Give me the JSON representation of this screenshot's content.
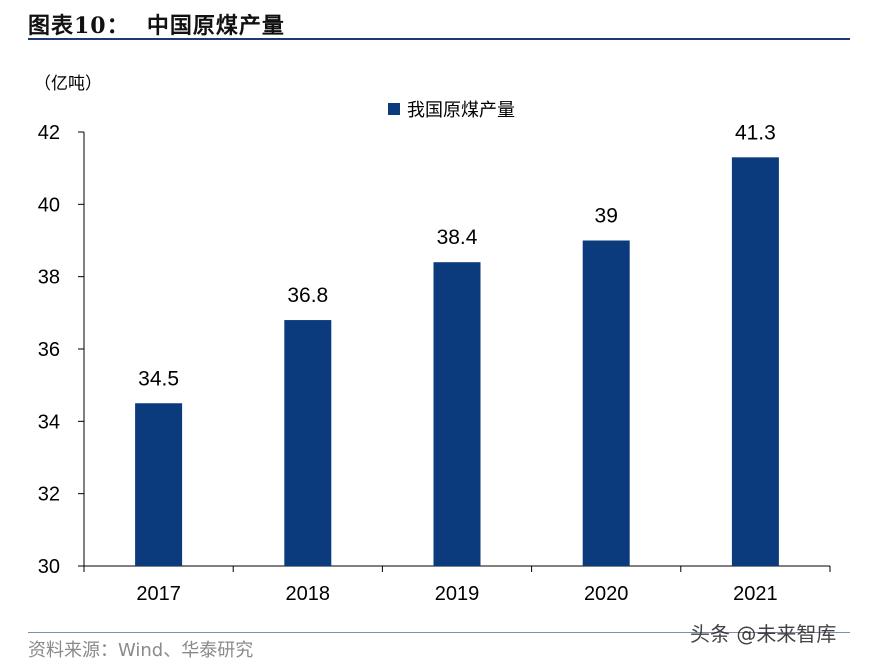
{
  "figure": {
    "title": "图表10：  中国原煤产量",
    "source": "资料来源：Wind、华泰研究",
    "watermark": "头条 @未来智库"
  },
  "chart_data": {
    "type": "bar",
    "unit_label": "（亿吨）",
    "categories": [
      "2017",
      "2018",
      "2019",
      "2020",
      "2021"
    ],
    "series": [
      {
        "name": "我国原煤产量",
        "values": [
          34.5,
          36.8,
          38.4,
          39,
          41.3
        ],
        "data_labels": [
          "34.5",
          "36.8",
          "38.4",
          "39",
          "41.3"
        ],
        "color": "#0b3a7d"
      }
    ],
    "ylim": [
      30,
      42
    ],
    "yticks": [
      30,
      32,
      34,
      36,
      38,
      40,
      42
    ],
    "grid": false,
    "legend": "top-center",
    "colors": {
      "header_rule": "#1f3a73",
      "axis": "#000000"
    }
  }
}
